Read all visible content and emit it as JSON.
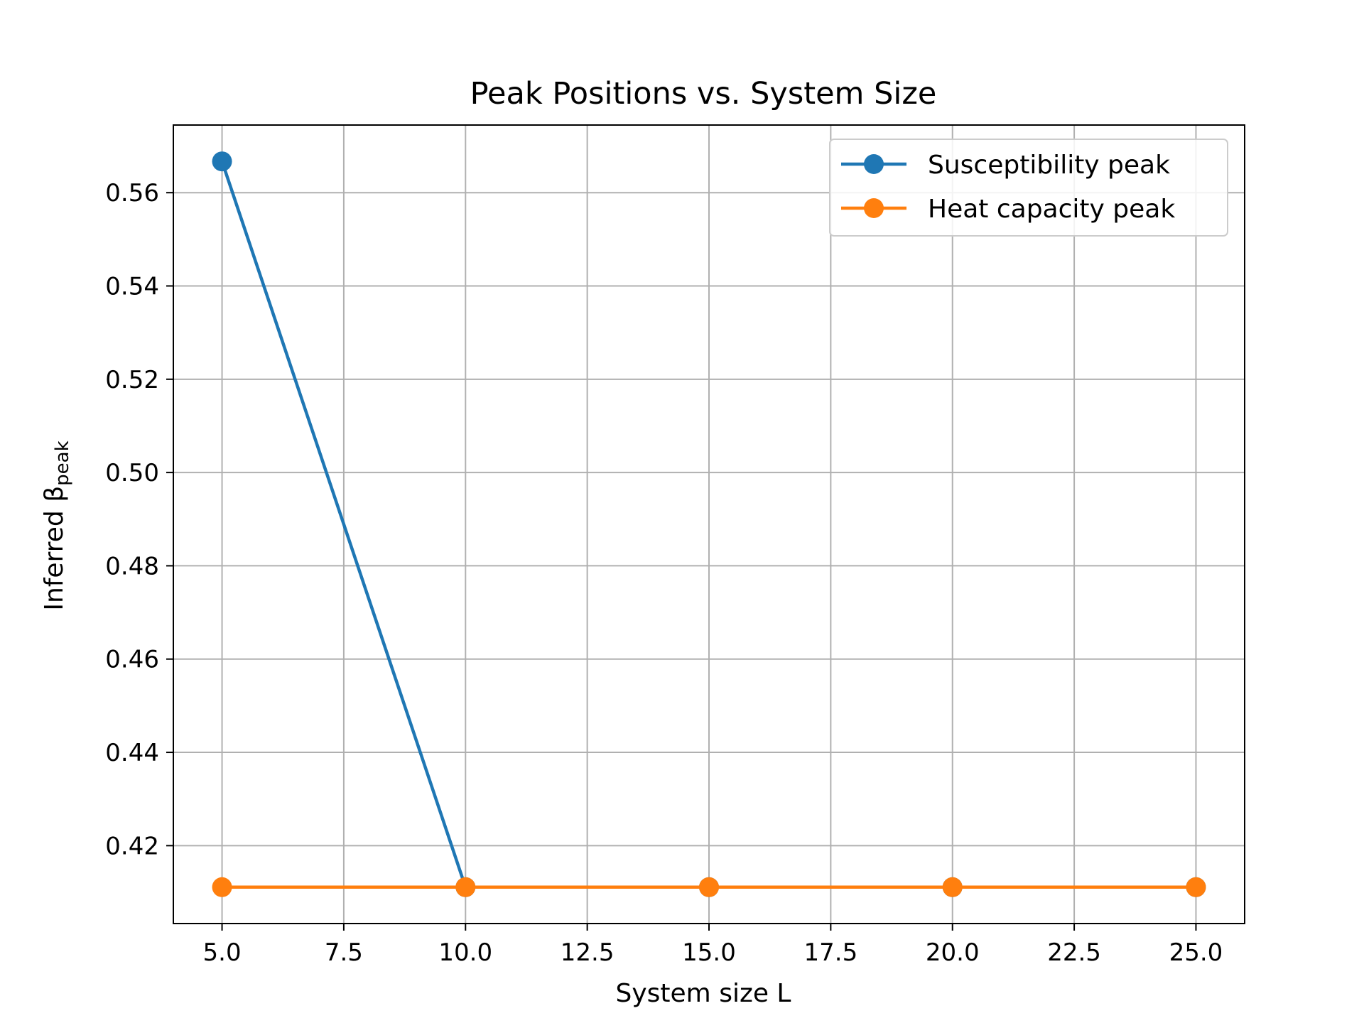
{
  "chart_data": {
    "type": "line",
    "title": "Peak Positions vs. System Size",
    "xlabel": "System size L",
    "ylabel": {
      "main": "Inferred β",
      "sub": "peak"
    },
    "x": [
      5,
      10,
      15,
      20,
      25
    ],
    "series": [
      {
        "name": "Susceptibility peak",
        "color": "#1f77b4",
        "values": [
          0.5667,
          0.4111,
          0.4111,
          0.4111,
          0.4111
        ]
      },
      {
        "name": "Heat capacity peak",
        "color": "#ff7f0e",
        "values": [
          0.4111,
          0.4111,
          0.4111,
          0.4111,
          0.4111
        ]
      }
    ],
    "xlim": [
      4.0,
      26.0
    ],
    "ylim": [
      0.4033,
      0.5745
    ],
    "xticks": [
      5.0,
      7.5,
      10.0,
      12.5,
      15.0,
      17.5,
      20.0,
      22.5,
      25.0
    ],
    "xtick_labels": [
      "5.0",
      "7.5",
      "10.0",
      "12.5",
      "15.0",
      "17.5",
      "20.0",
      "22.5",
      "25.0"
    ],
    "yticks": [
      0.42,
      0.44,
      0.46,
      0.48,
      0.5,
      0.52,
      0.54,
      0.56
    ],
    "ytick_labels": [
      "0.42",
      "0.44",
      "0.46",
      "0.48",
      "0.50",
      "0.52",
      "0.54",
      "0.56"
    ],
    "grid": true,
    "legend_position": "top-right"
  }
}
